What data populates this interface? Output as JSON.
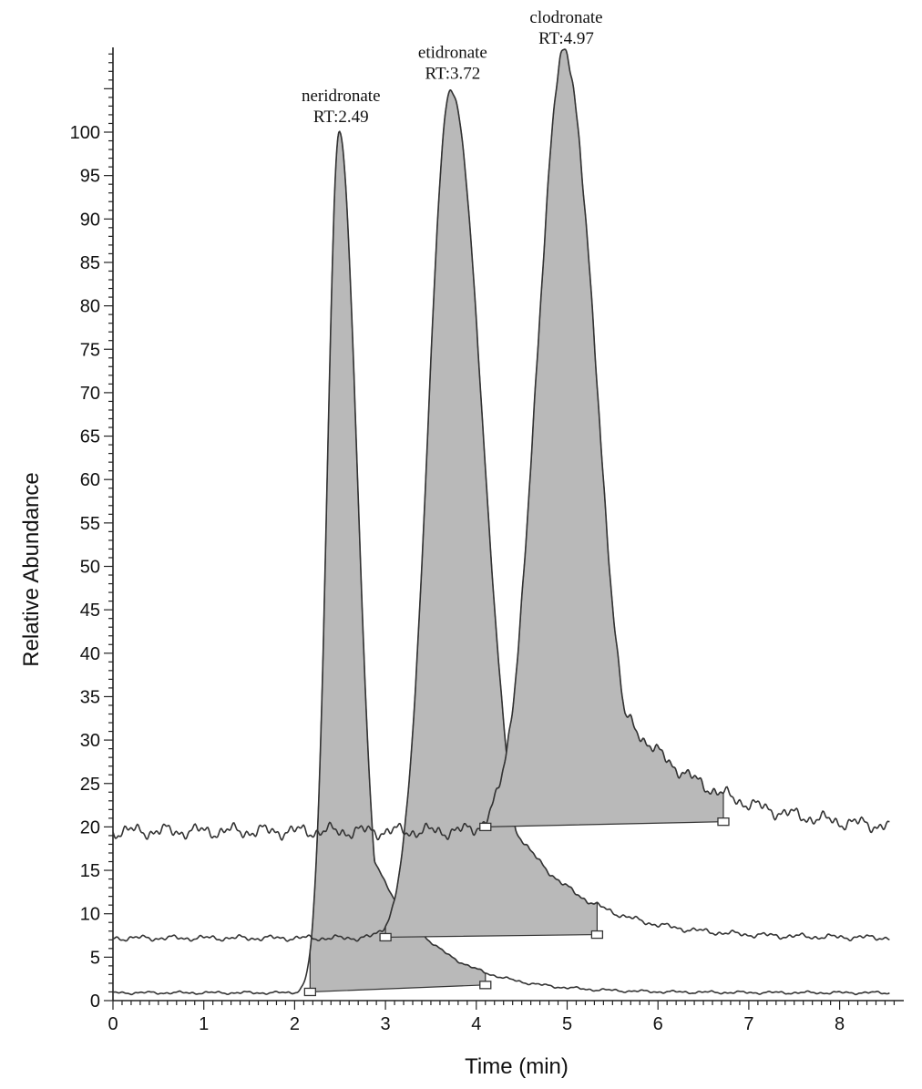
{
  "chart_data": {
    "type": "line",
    "xlabel": "Time (min)",
    "ylabel": "Relative Abundance",
    "xlim": [
      0,
      8.6
    ],
    "ylim": [
      0,
      100
    ],
    "x_ticks": [
      "0",
      "1",
      "2",
      "3",
      "4",
      "5",
      "6",
      "7",
      "8"
    ],
    "y_ticks": [
      "0",
      "5",
      "10",
      "15",
      "20",
      "25",
      "30",
      "35",
      "40",
      "45",
      "50",
      "55",
      "60",
      "65",
      "70",
      "75",
      "80",
      "85",
      "90",
      "95",
      "100"
    ],
    "grid": false,
    "series": [
      {
        "name": "neridronate",
        "peak_label": "neridronate",
        "rt_label": "RT:2.49",
        "color": "#555555",
        "baseline": 0.9,
        "peak_x": 2.49,
        "peak_y": 100,
        "width_left": 0.13,
        "width_right": 0.2,
        "tail_amp": 0.28,
        "tail_tau": 0.65,
        "integration_start": [
          2.17,
          1.0
        ],
        "integration_end": [
          4.1,
          1.8
        ]
      },
      {
        "name": "etidronate",
        "peak_label": "etidronate",
        "rt_label": "RT:3.72",
        "color": "#333333",
        "baseline": 7.2,
        "peak_x": 3.72,
        "peak_y": 105,
        "width_left": 0.25,
        "width_right": 0.35,
        "tail_amp": 0.33,
        "tail_tau": 0.75,
        "integration_start": [
          3.0,
          7.3
        ],
        "integration_end": [
          5.33,
          7.6
        ]
      },
      {
        "name": "clodronate",
        "peak_label": "clodronate",
        "rt_label": "RT:4.97",
        "color": "#333333",
        "baseline": 19.5,
        "peak_x": 4.97,
        "peak_y": 109,
        "width_left": 0.3,
        "width_right": 0.34,
        "tail_amp": 0.3,
        "tail_tau": 0.95,
        "integration_start": [
          4.1,
          20.0
        ],
        "integration_end": [
          6.72,
          20.6
        ]
      }
    ]
  }
}
